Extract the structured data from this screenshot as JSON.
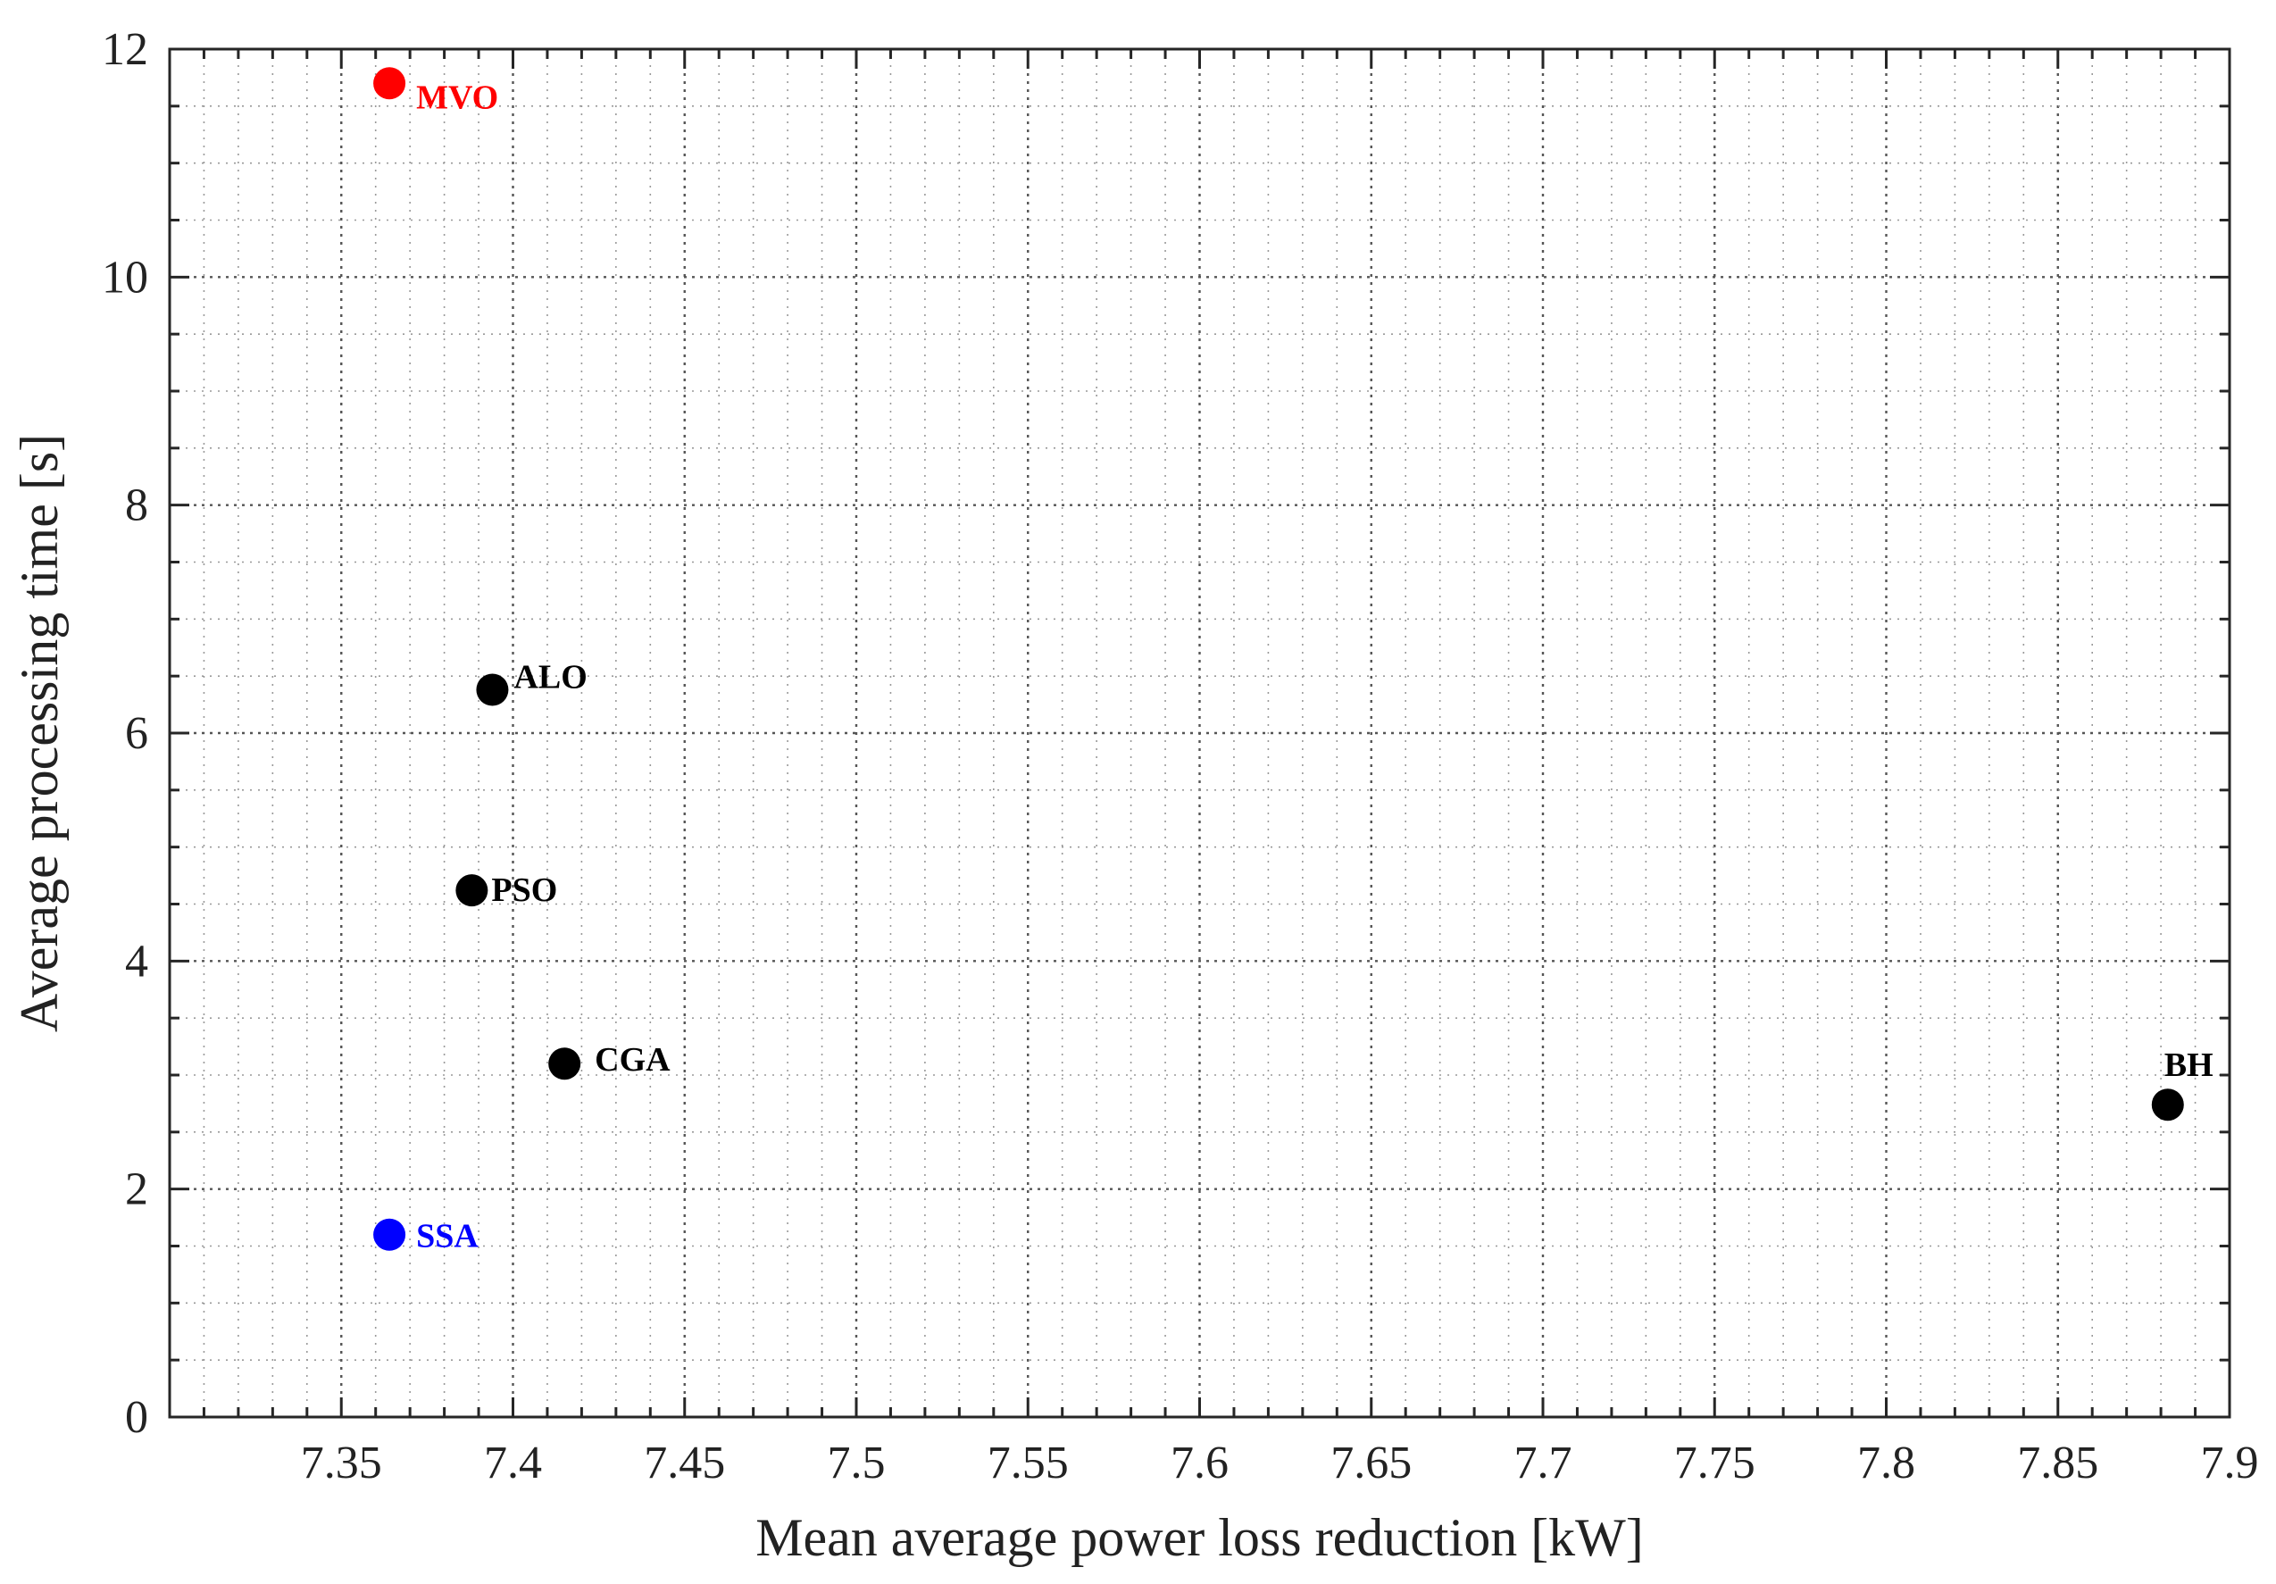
{
  "chart_data": {
    "type": "scatter",
    "title": "",
    "xlabel": "Mean average power loss reduction [kW]",
    "ylabel": "Average processing time [s]",
    "xlim": [
      7.3,
      7.9
    ],
    "ylim": [
      0,
      12
    ],
    "xticks": [
      7.35,
      7.4,
      7.45,
      7.5,
      7.55,
      7.6,
      7.65,
      7.7,
      7.75,
      7.8,
      7.85,
      7.9
    ],
    "xtick_labels": [
      "7.35",
      "7.4",
      "7.45",
      "7.5",
      "7.55",
      "7.6",
      "7.65",
      "7.7",
      "7.75",
      "7.8",
      "7.85",
      "7.9"
    ],
    "yticks": [
      0,
      2,
      4,
      6,
      8,
      10,
      12
    ],
    "ytick_labels": [
      "0",
      "2",
      "4",
      "6",
      "8",
      "10",
      "12"
    ],
    "grid": "major and minor, dotted",
    "points": [
      {
        "label": "MVO",
        "x": 7.364,
        "y": 11.7,
        "color": "#ff0000"
      },
      {
        "label": "ALO",
        "x": 7.394,
        "y": 6.38,
        "color": "#000000"
      },
      {
        "label": "PSO",
        "x": 7.388,
        "y": 4.62,
        "color": "#000000"
      },
      {
        "label": "CGA",
        "x": 7.415,
        "y": 3.1,
        "color": "#000000"
      },
      {
        "label": "BH",
        "x": 7.882,
        "y": 2.74,
        "color": "#000000"
      },
      {
        "label": "SSA",
        "x": 7.364,
        "y": 1.6,
        "color": "#0000ff"
      }
    ]
  }
}
